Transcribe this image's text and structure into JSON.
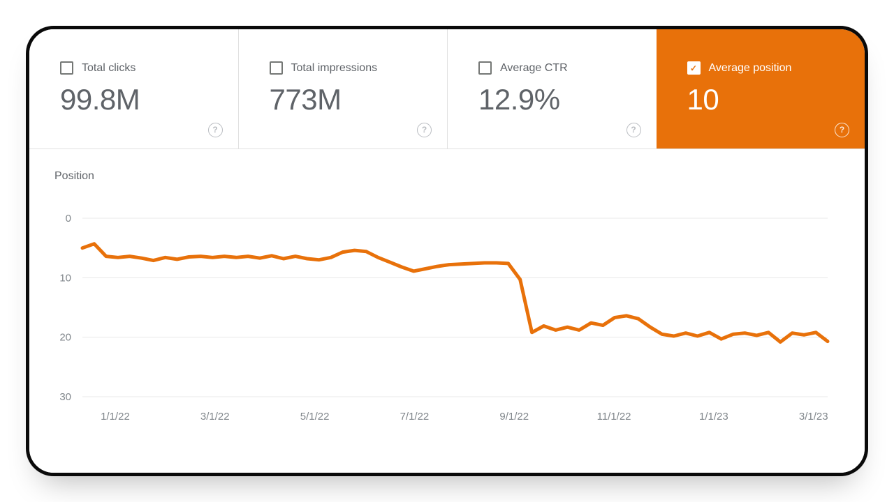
{
  "metric_cards": [
    {
      "label": "Total clicks",
      "value": "99.8M",
      "checked": false
    },
    {
      "label": "Total impressions",
      "value": "773M",
      "checked": false
    },
    {
      "label": "Average CTR",
      "value": "12.9%",
      "checked": false
    },
    {
      "label": "Average position",
      "value": "10",
      "checked": true
    }
  ],
  "icons": {
    "check": "✓",
    "help": "?"
  },
  "colors": {
    "accent_orange": "#e8710a",
    "text_gray": "#5f6368",
    "axis_gray": "#80868b",
    "grid_gray": "#e8e8e8",
    "divider_gray": "#e0e0e0",
    "frame_black": "#0a0a0a",
    "background": "#ffffff"
  },
  "chart_data": {
    "type": "line",
    "title": "Position",
    "xlabel": "",
    "ylabel": "Position",
    "y_ticks": [
      0,
      10,
      20,
      30
    ],
    "ylim": [
      0,
      30
    ],
    "y_axis_inverted": true,
    "grid": true,
    "legend": "none",
    "x_tick_labels": [
      "1/1/22",
      "3/1/22",
      "5/1/22",
      "7/1/22",
      "9/1/22",
      "11/1/22",
      "1/1/23",
      "3/1/23"
    ],
    "series": [
      {
        "name": "Average position",
        "color": "#e8710a",
        "values": [
          5.0,
          4.3,
          6.4,
          6.6,
          6.4,
          6.7,
          7.1,
          6.6,
          6.9,
          6.5,
          6.4,
          6.6,
          6.4,
          6.6,
          6.4,
          6.7,
          6.3,
          6.8,
          6.4,
          6.8,
          7.0,
          6.6,
          5.7,
          5.4,
          5.6,
          6.6,
          7.4,
          8.2,
          8.9,
          8.5,
          8.1,
          7.8,
          7.7,
          7.6,
          7.5,
          7.5,
          7.6,
          10.3,
          19.2,
          18.1,
          18.8,
          18.3,
          18.8,
          17.6,
          18.0,
          16.7,
          16.4,
          16.9,
          18.3,
          19.5,
          19.8,
          19.3,
          19.8,
          19.2,
          20.3,
          19.5,
          19.3,
          19.7,
          19.2,
          20.8,
          19.3,
          19.6,
          19.2,
          20.7
        ]
      }
    ]
  }
}
